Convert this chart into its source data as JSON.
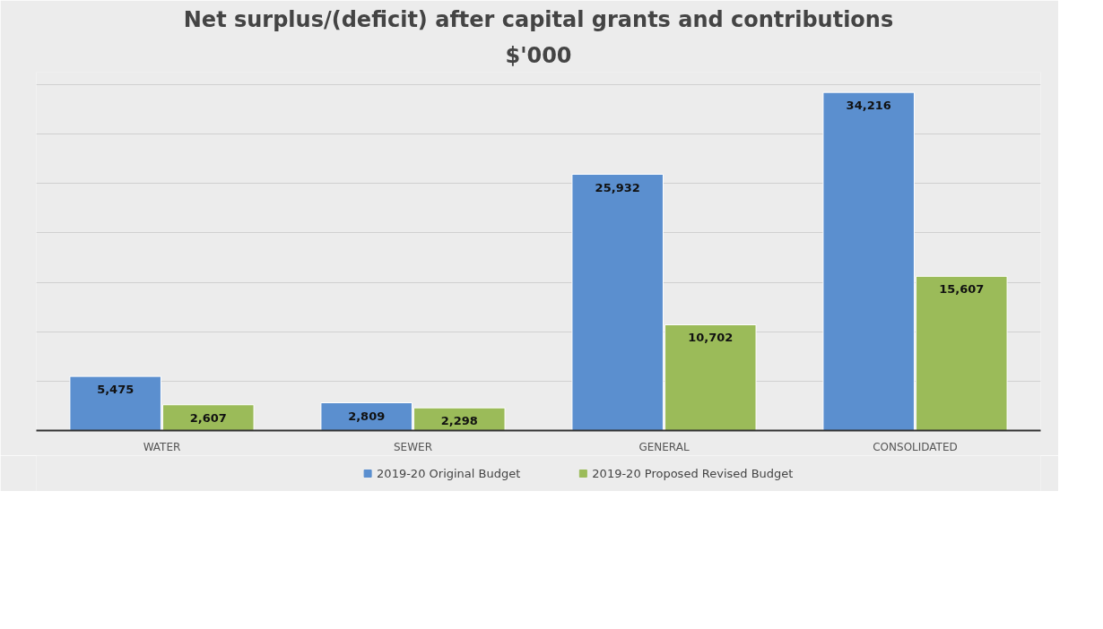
{
  "chart_data": {
    "type": "bar",
    "title": "Net surplus/(deficit) after capital grants and contributions",
    "subtitle": "$'000",
    "categories": [
      "WATER",
      "SEWER",
      "GENERAL",
      "CONSOLIDATED"
    ],
    "series": [
      {
        "name": "2019-20 Original Budget",
        "color": "#5b8fcf",
        "values": [
          5475,
          2809,
          25932,
          34216
        ],
        "value_labels": [
          "5,475",
          "2,809",
          "25,932",
          "34,216"
        ]
      },
      {
        "name": "2019-20 Proposed Revised Budget",
        "color": "#9bbb59",
        "values": [
          2607,
          2298,
          10702,
          15607
        ],
        "value_labels": [
          "2,607",
          "2,298",
          "10,702",
          "15,607"
        ]
      }
    ],
    "tick_labels": "x",
    "grid": "y",
    "legend": "bottom"
  }
}
